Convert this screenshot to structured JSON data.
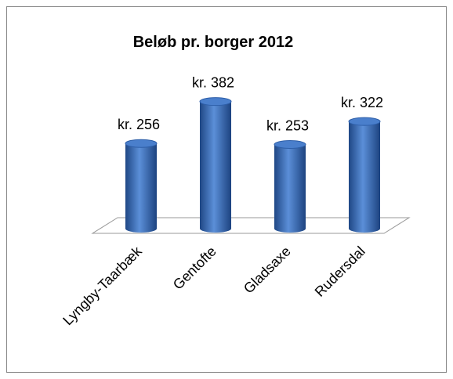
{
  "chart_data": {
    "type": "bar",
    "title": "Beløb pr. borger 2012",
    "categories": [
      "Lyngby-Taarbæk",
      "Gentofte",
      "Gladsaxe",
      "Rudersdal"
    ],
    "values": [
      256,
      382,
      253,
      322
    ],
    "value_labels": [
      "kr. 256",
      "kr. 382",
      "kr. 253",
      "kr. 322"
    ],
    "color": "#3a6fc0"
  }
}
